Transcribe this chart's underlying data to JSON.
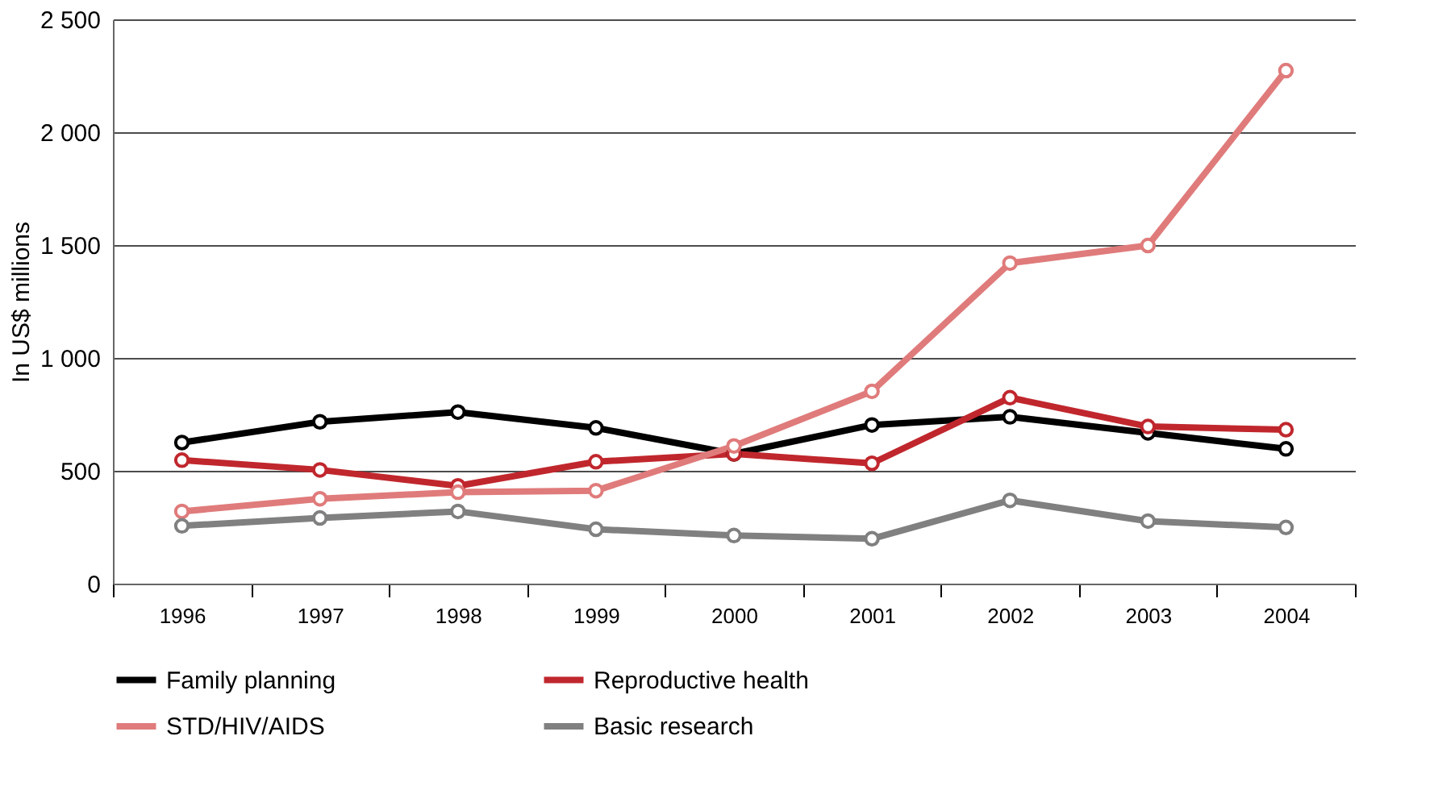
{
  "chart_data": {
    "type": "line",
    "ylabel": "In US$ millions",
    "categories": [
      "1996",
      "1997",
      "1998",
      "1999",
      "2000",
      "2001",
      "2002",
      "2003",
      "2004"
    ],
    "series": [
      {
        "name": "Family planning",
        "color": "#000000",
        "values": [
          625,
          717,
          760,
          690,
          575,
          703,
          739,
          668,
          597
        ]
      },
      {
        "name": "Reproductive health",
        "color": "#c0272d",
        "values": [
          547,
          504,
          433,
          540,
          575,
          533,
          824,
          696,
          682
        ]
      },
      {
        "name": "STD/HIV/AIDS",
        "color": "#e07b7b",
        "values": [
          320,
          376,
          405,
          412,
          610,
          852,
          1420,
          1498,
          2273
        ]
      },
      {
        "name": "Basic research",
        "color": "#808080",
        "values": [
          256,
          291,
          320,
          241,
          213,
          199,
          369,
          277,
          249
        ]
      }
    ],
    "ylim": [
      0,
      2500
    ],
    "yticks": [
      0,
      500,
      {
        "value": 1000,
        "label": "1 000"
      },
      {
        "value": 1500,
        "label": "1 500"
      },
      {
        "value": 2000,
        "label": "2 000"
      },
      {
        "value": 2500,
        "label": "2 500"
      }
    ],
    "grid": "y",
    "legend": "bottom",
    "marker": "circle",
    "line_style": "solid"
  }
}
